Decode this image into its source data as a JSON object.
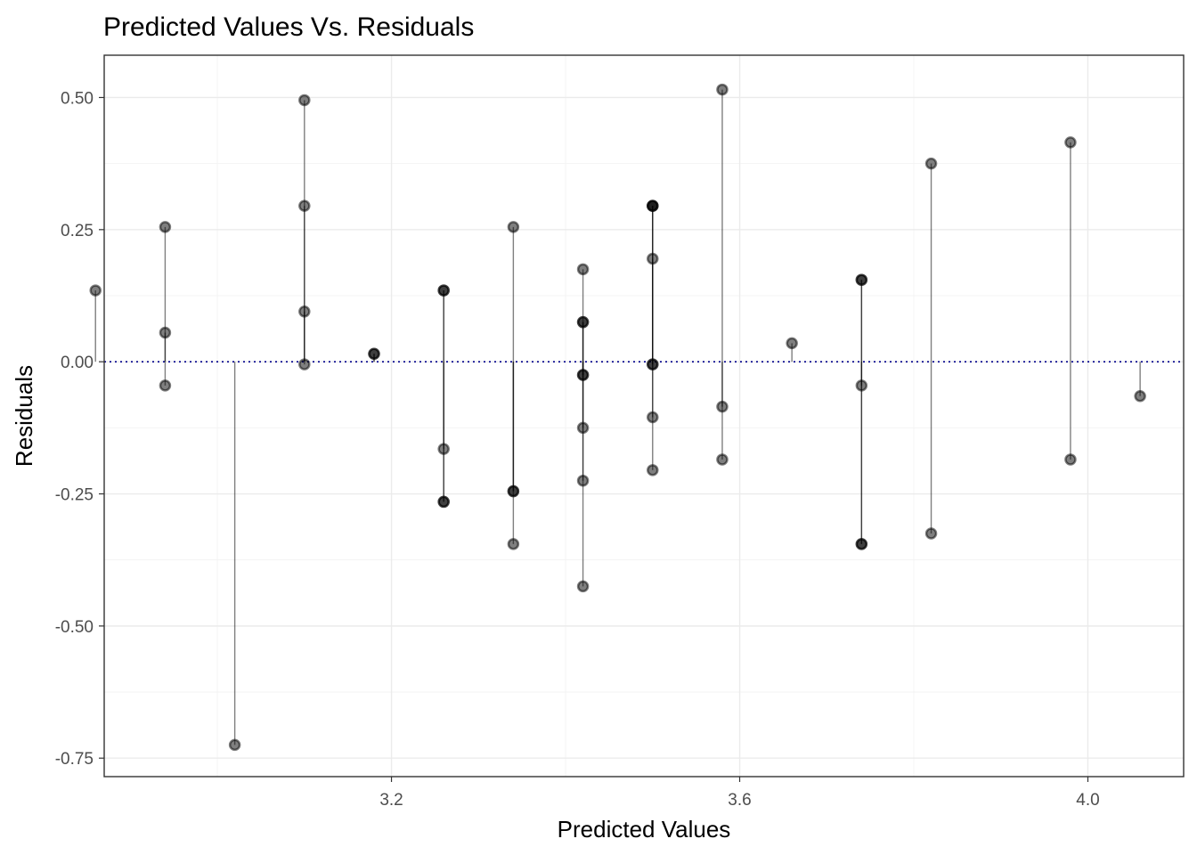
{
  "chart_data": {
    "type": "scatter",
    "title": "Predicted Values Vs. Residuals",
    "xlabel": "Predicted Values",
    "ylabel": "Residuals",
    "xlim": [
      2.87,
      4.11
    ],
    "ylim": [
      -0.785,
      0.58
    ],
    "x_ticks": [
      {
        "value": 3.2,
        "label": "3.2"
      },
      {
        "value": 3.6,
        "label": "3.6"
      },
      {
        "value": 4.0,
        "label": "4.0"
      }
    ],
    "y_ticks": [
      {
        "value": 0.5,
        "label": "0.50"
      },
      {
        "value": 0.25,
        "label": "0.25"
      },
      {
        "value": 0.0,
        "label": "0.00"
      },
      {
        "value": -0.25,
        "label": "-0.25"
      },
      {
        "value": -0.5,
        "label": "-0.50"
      },
      {
        "value": -0.75,
        "label": "-0.75"
      }
    ],
    "x_minor_ticks": [
      3.0,
      3.4,
      3.8
    ],
    "y_minor_ticks": [
      0.375,
      0.125,
      -0.125,
      -0.375,
      -0.625
    ],
    "grid": true,
    "reference_line": {
      "y": 0,
      "style": "dotted",
      "color": "#00008b"
    },
    "point_color": "#000000",
    "point_alpha": 0.5,
    "segments_to_zero": true,
    "points": [
      {
        "x": 2.86,
        "y": 0.135
      },
      {
        "x": 2.94,
        "y": 0.255
      },
      {
        "x": 2.94,
        "y": 0.055
      },
      {
        "x": 2.94,
        "y": -0.045
      },
      {
        "x": 3.02,
        "y": -0.725
      },
      {
        "x": 3.1,
        "y": 0.495
      },
      {
        "x": 3.1,
        "y": 0.295
      },
      {
        "x": 3.1,
        "y": 0.095
      },
      {
        "x": 3.1,
        "y": -0.005
      },
      {
        "x": 3.18,
        "y": 0.015
      },
      {
        "x": 3.18,
        "y": 0.015
      },
      {
        "x": 3.26,
        "y": 0.135
      },
      {
        "x": 3.26,
        "y": 0.135
      },
      {
        "x": 3.26,
        "y": -0.165
      },
      {
        "x": 3.26,
        "y": -0.265
      },
      {
        "x": 3.26,
        "y": -0.265
      },
      {
        "x": 3.34,
        "y": 0.255
      },
      {
        "x": 3.34,
        "y": -0.245
      },
      {
        "x": 3.34,
        "y": -0.245
      },
      {
        "x": 3.34,
        "y": -0.345
      },
      {
        "x": 3.42,
        "y": 0.175
      },
      {
        "x": 3.42,
        "y": 0.075
      },
      {
        "x": 3.42,
        "y": 0.075
      },
      {
        "x": 3.42,
        "y": -0.025
      },
      {
        "x": 3.42,
        "y": -0.025
      },
      {
        "x": 3.42,
        "y": -0.125
      },
      {
        "x": 3.42,
        "y": -0.225
      },
      {
        "x": 3.42,
        "y": -0.425
      },
      {
        "x": 3.5,
        "y": 0.295
      },
      {
        "x": 3.5,
        "y": 0.295
      },
      {
        "x": 3.5,
        "y": 0.295
      },
      {
        "x": 3.5,
        "y": 0.195
      },
      {
        "x": 3.5,
        "y": -0.005
      },
      {
        "x": 3.5,
        "y": -0.005
      },
      {
        "x": 3.5,
        "y": -0.105
      },
      {
        "x": 3.5,
        "y": -0.205
      },
      {
        "x": 3.58,
        "y": 0.515
      },
      {
        "x": 3.58,
        "y": -0.085
      },
      {
        "x": 3.58,
        "y": -0.185
      },
      {
        "x": 3.66,
        "y": 0.035
      },
      {
        "x": 3.74,
        "y": 0.155
      },
      {
        "x": 3.74,
        "y": 0.155
      },
      {
        "x": 3.74,
        "y": -0.045
      },
      {
        "x": 3.74,
        "y": -0.345
      },
      {
        "x": 3.74,
        "y": -0.345
      },
      {
        "x": 3.82,
        "y": 0.375
      },
      {
        "x": 3.82,
        "y": -0.325
      },
      {
        "x": 3.98,
        "y": 0.415
      },
      {
        "x": 3.98,
        "y": -0.185
      },
      {
        "x": 4.06,
        "y": -0.065
      }
    ]
  }
}
